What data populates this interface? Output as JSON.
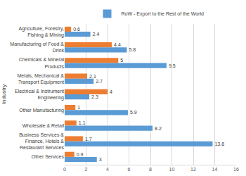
{
  "chart_data": {
    "type": "bar",
    "orientation": "horizontal",
    "y_label": "Industry",
    "categories": [
      "Agriculture, Forestry, Fishing & Mining",
      "Manufacturing of Food & Drink",
      "Chemicals & Mineral Products",
      "Metals, Mechanical & Transport Equipment",
      "Electrical & Instrument Engineering",
      "Other Manufacturing",
      "Wholesale & Retail",
      "Business Services & Finance, Hotels & Restaurant Services",
      "Other Services"
    ],
    "series": [
      {
        "color": "#ed7d31",
        "values": [
          0.6,
          4.4,
          5,
          2.1,
          4,
          1,
          1.1,
          1.7,
          0.9
        ]
      },
      {
        "name": "RoW - Export to the Rest of the World",
        "color": "#5b9bd5",
        "values": [
          2.4,
          5.8,
          9.5,
          2.7,
          2.3,
          5.9,
          8.2,
          13.8,
          3
        ]
      }
    ],
    "xlim": [
      0,
      16
    ],
    "xticks": [
      0,
      2,
      4,
      6,
      8,
      10,
      12,
      14,
      16
    ],
    "grid": true,
    "data_labels": true,
    "legend": "top"
  }
}
